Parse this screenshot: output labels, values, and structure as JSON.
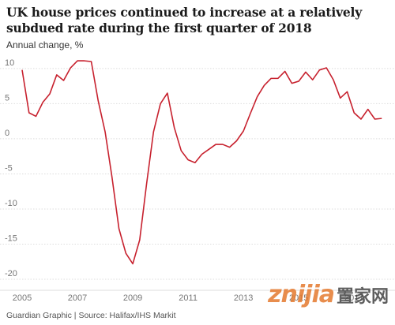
{
  "title": "UK house prices continued to increase at a relatively subdued rate during the first quarter of 2018",
  "source": "Guardian Graphic | Source: Halifax/IHS Markit",
  "watermark": {
    "logo": "znijia",
    "chinese": "置家网"
  },
  "colors": {
    "line": "#c7212e",
    "grid": "#dcdcdc",
    "axis_text": "#767676",
    "title": "#1a1a1a"
  },
  "chart_data": {
    "type": "line",
    "title": "UK house prices continued to increase at a relatively subdued rate during the first quarter of 2018",
    "ylabel": "Annual change, %",
    "xlabel": "",
    "ylim": [
      -20,
      11
    ],
    "xlim": [
      2005.0,
      2018.25
    ],
    "yticks": [
      "10",
      "5",
      "0",
      "-5",
      "-10",
      "-15",
      "-20"
    ],
    "xticks": [
      "2005",
      "2007",
      "2009",
      "2011",
      "2013",
      "2015",
      "2017"
    ],
    "grid": true,
    "series": [
      {
        "values": [
          [
            2005.0,
            9.8
          ],
          [
            2005.25,
            3.7
          ],
          [
            2005.5,
            3.2
          ],
          [
            2005.75,
            5.2
          ],
          [
            2006.0,
            6.4
          ],
          [
            2006.25,
            9.1
          ],
          [
            2006.5,
            8.3
          ],
          [
            2006.75,
            10.1
          ],
          [
            2007.0,
            11.1
          ],
          [
            2007.25,
            11.1
          ],
          [
            2007.5,
            11.0
          ],
          [
            2007.75,
            5.4
          ],
          [
            2008.0,
            1.0
          ],
          [
            2008.25,
            -5.5
          ],
          [
            2008.5,
            -12.8
          ],
          [
            2008.75,
            -16.3
          ],
          [
            2009.0,
            -17.8
          ],
          [
            2009.25,
            -14.4
          ],
          [
            2009.5,
            -6.4
          ],
          [
            2009.75,
            1.0
          ],
          [
            2010.0,
            5.0
          ],
          [
            2010.25,
            6.5
          ],
          [
            2010.5,
            1.6
          ],
          [
            2010.75,
            -1.7
          ],
          [
            2011.0,
            -3.0
          ],
          [
            2011.25,
            -3.4
          ],
          [
            2011.5,
            -2.2
          ],
          [
            2011.75,
            -1.5
          ],
          [
            2012.0,
            -0.8
          ],
          [
            2012.25,
            -0.8
          ],
          [
            2012.5,
            -1.2
          ],
          [
            2012.75,
            -0.3
          ],
          [
            2013.0,
            1.1
          ],
          [
            2013.25,
            3.6
          ],
          [
            2013.5,
            6.0
          ],
          [
            2013.75,
            7.6
          ],
          [
            2014.0,
            8.6
          ],
          [
            2014.25,
            8.6
          ],
          [
            2014.5,
            9.6
          ],
          [
            2014.75,
            7.9
          ],
          [
            2015.0,
            8.2
          ],
          [
            2015.25,
            9.5
          ],
          [
            2015.5,
            8.4
          ],
          [
            2015.75,
            9.8
          ],
          [
            2016.0,
            10.1
          ],
          [
            2016.25,
            8.4
          ],
          [
            2016.5,
            5.8
          ],
          [
            2016.75,
            6.7
          ],
          [
            2017.0,
            3.7
          ],
          [
            2017.25,
            2.8
          ],
          [
            2017.5,
            4.2
          ],
          [
            2017.75,
            2.8
          ],
          [
            2018.0,
            2.9
          ]
        ]
      }
    ]
  }
}
